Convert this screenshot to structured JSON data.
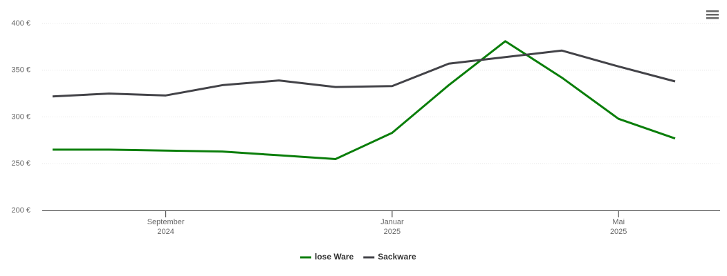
{
  "chart_data": {
    "type": "line",
    "x": [
      "2024-07",
      "2024-08",
      "2024-09",
      "2024-10",
      "2024-11",
      "2024-12",
      "2025-01",
      "2025-02",
      "2025-03",
      "2025-04",
      "2025-05",
      "2025-06"
    ],
    "series": [
      {
        "name": "lose Ware",
        "color": "#0a7e0a",
        "values": [
          265,
          265,
          264,
          263,
          259,
          255,
          283,
          334,
          381,
          342,
          298,
          277
        ]
      },
      {
        "name": "Sackware",
        "color": "#434348",
        "values": [
          322,
          325,
          323,
          334,
          339,
          332,
          333,
          357,
          364,
          371,
          354,
          338
        ]
      }
    ],
    "xlim": [
      "2024-07",
      "2025-06"
    ],
    "xticks": [
      {
        "value": "2024-09",
        "label": "September 2024"
      },
      {
        "value": "2025-01",
        "label": "Januar 2025"
      },
      {
        "value": "2025-05",
        "label": "Mai 2025"
      }
    ],
    "ylim": [
      200,
      400
    ],
    "yticks": [
      {
        "value": 200,
        "label": "200 €"
      },
      {
        "value": 250,
        "label": "250 €"
      },
      {
        "value": 300,
        "label": "300 €"
      },
      {
        "value": 350,
        "label": "350 €"
      },
      {
        "value": 400,
        "label": "400 €"
      }
    ],
    "grid": true,
    "legend": "bottom"
  }
}
